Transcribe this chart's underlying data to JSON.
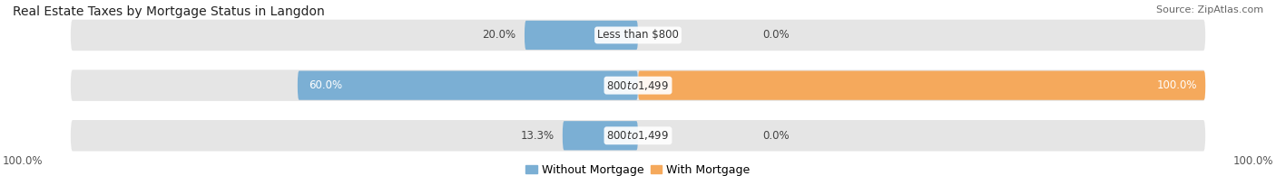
{
  "title": "Real Estate Taxes by Mortgage Status in Langdon",
  "source": "Source: ZipAtlas.com",
  "rows": [
    {
      "label": "Less than $800",
      "without_mortgage": 20.0,
      "with_mortgage": 0.0,
      "with_mortgage_display": "0.0%"
    },
    {
      "label": "$800 to $1,499",
      "without_mortgage": 60.0,
      "with_mortgage": 100.0,
      "with_mortgage_display": "100.0%"
    },
    {
      "label": "$800 to $1,499",
      "without_mortgage": 13.3,
      "with_mortgage": 0.0,
      "with_mortgage_display": "0.0%"
    }
  ],
  "color_without": "#7bafd4",
  "color_with": "#f5a95c",
  "bar_height": 0.62,
  "bar_bg_color": "#e5e5e5",
  "scale": 100,
  "left_axis_label": "100.0%",
  "right_axis_label": "100.0%",
  "title_fontsize": 10,
  "source_fontsize": 8,
  "label_fontsize": 8.5,
  "pct_fontsize": 8.5,
  "legend_fontsize": 9,
  "bg_bar_rounding": 0.35,
  "data_bar_rounding": 0.28
}
